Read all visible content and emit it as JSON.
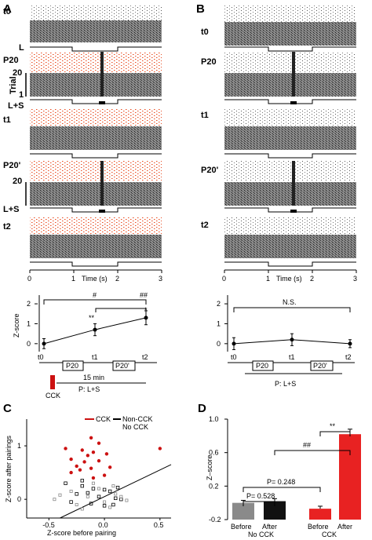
{
  "panels": {
    "A": "A",
    "B": "B",
    "C": "C",
    "D": "D"
  },
  "raster_labels": {
    "A": [
      "t0",
      "L",
      "P20",
      "20",
      "Trial",
      "1",
      "L+S",
      "t1",
      "P20'",
      "20",
      "L+S",
      "t2"
    ],
    "B": [
      "t0",
      "P20",
      "t1",
      "P20'",
      "t2"
    ]
  },
  "raster_axis": {
    "ticks": [
      "0",
      "1",
      "2",
      "3"
    ],
    "xlabel": "Time (s)"
  },
  "colors": {
    "red": "#e8491d",
    "dark_red": "#cc1111",
    "gray_block": "#8c8c8c",
    "bar_gray": "#8a8a8a"
  },
  "timeline": {
    "points": [
      "t0",
      "t1",
      "t2"
    ],
    "boxes": [
      "P20",
      "P20'"
    ],
    "duration": "15 min",
    "pairing": "P: L+S",
    "drug": "CCK"
  },
  "chart_data": [
    {
      "panel": "A",
      "type": "line",
      "x": [
        "t0",
        "t1",
        "t2"
      ],
      "values": [
        0.0,
        0.7,
        1.3
      ],
      "errors": [
        0.25,
        0.3,
        0.35
      ],
      "ylabel": "Z-score",
      "yticks": [
        "0",
        "1",
        "2"
      ],
      "ylim": [
        -0.4,
        2.2
      ],
      "annotations": [
        "#",
        "##",
        "**",
        "*"
      ]
    },
    {
      "panel": "B",
      "type": "line",
      "x": [
        "t0",
        "t1",
        "t2"
      ],
      "values": [
        0.0,
        0.2,
        0.0
      ],
      "errors": [
        0.3,
        0.3,
        0.2
      ],
      "yticks": [
        "0",
        "1",
        "2"
      ],
      "ylim": [
        -0.4,
        2.2
      ],
      "annotations": [
        "N.S."
      ]
    },
    {
      "panel": "C",
      "type": "scatter",
      "xlabel": "Z-score before pairing",
      "ylabel": "Z-score after pairings",
      "xticks": [
        "-0.5",
        "0.0",
        "0.5"
      ],
      "yticks": [
        "0",
        "1"
      ],
      "xlim": [
        -0.7,
        0.6
      ],
      "ylim": [
        -0.35,
        1.5
      ],
      "legend": {
        "cck": "CCK",
        "non_cck": "Non-CCK",
        "no_cck": "No CCK"
      },
      "series": [
        {
          "name": "CCK",
          "x": [
            -0.12,
            -0.05,
            -0.35,
            -0.2,
            -0.1,
            0.02,
            -0.15,
            -0.3,
            -0.05,
            -0.18,
            -0.25,
            0.05,
            -0.12,
            -0.22,
            0.5,
            -0.3,
            0.0,
            -0.1
          ],
          "y": [
            1.15,
            1.05,
            0.95,
            0.92,
            0.88,
            0.85,
            0.82,
            0.75,
            0.72,
            0.7,
            0.62,
            0.6,
            0.58,
            0.55,
            0.95,
            0.5,
            0.45,
            0.4
          ]
        },
        {
          "name": "Non-CCK",
          "x": [
            -0.35,
            -0.2,
            -0.1,
            0.0,
            0.05,
            -0.15,
            -0.25,
            -0.05,
            0.1,
            0.15,
            -0.3,
            -0.12,
            0.08,
            0.0,
            -0.2,
            0.12
          ],
          "y": [
            0.3,
            0.25,
            0.2,
            0.18,
            0.15,
            0.12,
            0.1,
            0.05,
            0.02,
            0.0,
            -0.05,
            -0.08,
            -0.1,
            -0.12,
            0.35,
            0.22
          ]
        },
        {
          "name": "No CCK",
          "x": [
            -0.45,
            -0.3,
            -0.15,
            0.0,
            0.1,
            -0.25,
            -0.05,
            0.05,
            0.15,
            -0.4,
            -0.1,
            0.2,
            -0.2,
            0.08
          ],
          "y": [
            0.0,
            0.15,
            0.05,
            -0.05,
            0.1,
            -0.1,
            0.2,
            -0.15,
            0.05,
            0.08,
            0.3,
            -0.02,
            -0.18,
            0.25
          ]
        }
      ]
    },
    {
      "panel": "D",
      "type": "bar",
      "categories": [
        "Before",
        "After",
        "Before",
        "After"
      ],
      "groups": [
        "No CCK",
        "CCK"
      ],
      "values": [
        0.0,
        0.02,
        -0.07,
        0.82
      ],
      "errors": [
        0.03,
        0.03,
        0.03,
        0.06
      ],
      "ylabel": "Z–score",
      "yticks": [
        "-0.2",
        "0.2",
        "0.6",
        "1.0"
      ],
      "ylim": [
        -0.2,
        1.0
      ],
      "annotations": [
        "P= 0.528",
        "P= 0.248",
        "##",
        "**"
      ]
    }
  ]
}
